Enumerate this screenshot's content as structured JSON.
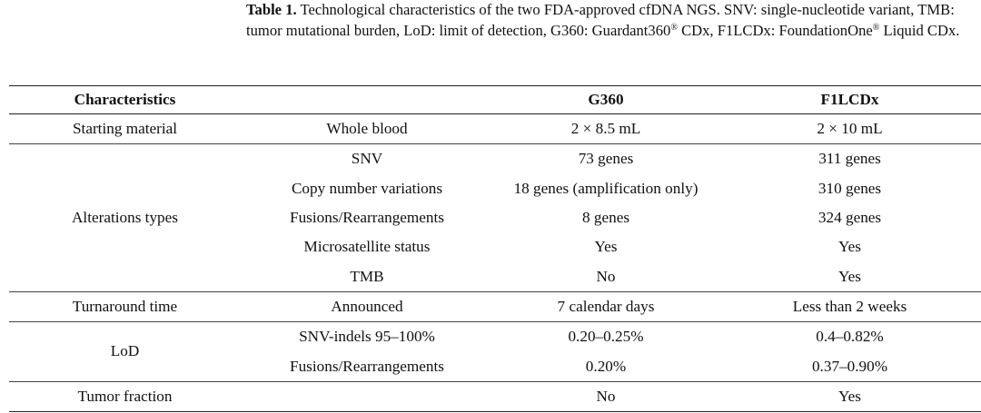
{
  "caption": {
    "label": "Table 1.",
    "text_part1": " Technological characteristics of the two FDA-approved cfDNA NGS. SNV: single-nucleotide variant, TMB: tumor mutational burden, LoD: limit of detection, G360: Guardant360",
    "reg1": "®",
    "text_part2": " CDx, F1LCDx: FoundationOne",
    "reg2": "®",
    "text_part3": " Liquid CDx."
  },
  "table": {
    "headers": {
      "characteristics": "Characteristics",
      "sub": "",
      "g360": "G360",
      "f1lcdx": "F1LCDx"
    },
    "rows": {
      "starting_material": {
        "group": "Starting material",
        "sub": "Whole blood",
        "g360": "2 × 8.5 mL",
        "f1lcdx": "2 × 10 mL"
      },
      "alterations": {
        "group": "Alterations types",
        "snv": {
          "sub": "SNV",
          "g360": "73 genes",
          "f1lcdx": "311 genes"
        },
        "cnv": {
          "sub": "Copy number variations",
          "g360": "18 genes (amplification only)",
          "f1lcdx": "310 genes"
        },
        "fusions": {
          "sub": "Fusions/Rearrangements",
          "g360": "8 genes",
          "f1lcdx": "324 genes"
        },
        "msi": {
          "sub": "Microsatellite status",
          "g360": "Yes",
          "f1lcdx": "Yes"
        },
        "tmb": {
          "sub": "TMB",
          "g360": "No",
          "f1lcdx": "Yes"
        }
      },
      "turnaround": {
        "group": "Turnaround time",
        "sub": "Announced",
        "g360": "7 calendar days",
        "f1lcdx": "Less than 2 weeks"
      },
      "lod": {
        "group": "LoD",
        "snv_indels": {
          "sub": "SNV-indels 95–100%",
          "g360": "0.20–0.25%",
          "f1lcdx": "0.4–0.82%"
        },
        "fusions": {
          "sub": "Fusions/Rearrangements",
          "g360": "0.20%",
          "f1lcdx": "0.37–0.90%"
        }
      },
      "tumor_fraction": {
        "group": "Tumor fraction",
        "sub": "",
        "g360": "No",
        "f1lcdx": "Yes"
      }
    }
  }
}
